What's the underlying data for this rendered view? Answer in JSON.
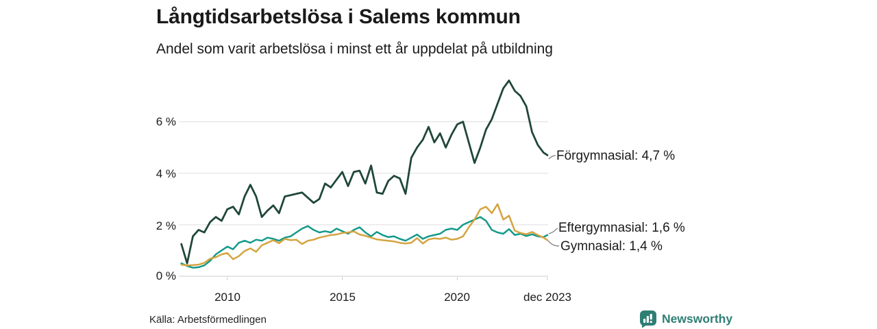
{
  "header": {
    "title": "Långtidsarbetslösa i Salems kommun",
    "subtitle": "Andel som varit arbetslösa i minst ett år uppdelat på utbildning"
  },
  "chart_data": {
    "type": "line",
    "title": "Långtidsarbetslösa i Salems kommun",
    "subtitle": "Andel som varit arbetslösa i minst ett år uppdelat på utbildning",
    "unit": "%",
    "grid": true,
    "legend_position": "end-of-line-annotations",
    "xlim": [
      2007.95,
      2023.95
    ],
    "ylim": [
      0,
      7.8
    ],
    "y_ticks": [
      {
        "value": 6,
        "label": "6 %"
      },
      {
        "value": 4,
        "label": "4 %"
      },
      {
        "value": 2,
        "label": "2 %"
      },
      {
        "value": 0,
        "label": "0 %"
      }
    ],
    "x_ticks": [
      {
        "x": 2010,
        "label": "2010"
      },
      {
        "x": 2015,
        "label": "2015"
      },
      {
        "x": 2020,
        "label": "2020"
      },
      {
        "x": 2023.92,
        "label": "dec 2023"
      }
    ],
    "x": [
      2008.0,
      2008.25,
      2008.5,
      2008.75,
      2009.0,
      2009.25,
      2009.5,
      2009.75,
      2010.0,
      2010.25,
      2010.5,
      2010.75,
      2011.0,
      2011.25,
      2011.5,
      2011.75,
      2012.0,
      2012.25,
      2012.5,
      2012.75,
      2013.0,
      2013.25,
      2013.5,
      2013.75,
      2014.0,
      2014.25,
      2014.5,
      2014.75,
      2015.0,
      2015.25,
      2015.5,
      2015.75,
      2016.0,
      2016.25,
      2016.5,
      2016.75,
      2017.0,
      2017.25,
      2017.5,
      2017.75,
      2018.0,
      2018.25,
      2018.5,
      2018.75,
      2019.0,
      2019.25,
      2019.5,
      2019.75,
      2020.0,
      2020.25,
      2020.5,
      2020.75,
      2021.0,
      2021.25,
      2021.5,
      2021.75,
      2022.0,
      2022.25,
      2022.5,
      2022.75,
      2023.0,
      2023.25,
      2023.5,
      2023.75,
      2023.92
    ],
    "series": [
      {
        "name": "Eftergymnasial",
        "annotation": "Eftergymnasial: 1,6 %",
        "last_value": "1,6 %",
        "color": "#14998a",
        "values": [
          0.5,
          0.4,
          0.33,
          0.35,
          0.42,
          0.6,
          0.85,
          1.0,
          1.15,
          1.05,
          1.3,
          1.38,
          1.3,
          1.42,
          1.38,
          1.5,
          1.45,
          1.38,
          1.5,
          1.55,
          1.7,
          1.85,
          1.95,
          1.8,
          1.7,
          1.75,
          1.7,
          1.85,
          1.75,
          1.65,
          1.8,
          1.9,
          1.7,
          1.55,
          1.72,
          1.6,
          1.52,
          1.55,
          1.45,
          1.38,
          1.5,
          1.62,
          1.45,
          1.55,
          1.6,
          1.65,
          1.8,
          1.85,
          1.8,
          2.0,
          2.1,
          2.2,
          2.3,
          2.15,
          1.8,
          1.7,
          1.65,
          1.83,
          1.6,
          1.65,
          1.56,
          1.63,
          1.55,
          1.52,
          1.6
        ]
      },
      {
        "name": "Gymnasial",
        "annotation": "Gymnasial: 1,4 %",
        "last_value": "1,4 %",
        "color": "#d4a43f",
        "values": [
          0.45,
          0.42,
          0.43,
          0.45,
          0.52,
          0.68,
          0.74,
          0.85,
          0.9,
          0.66,
          0.78,
          0.98,
          1.08,
          0.95,
          1.2,
          1.3,
          1.4,
          1.28,
          1.45,
          1.4,
          1.42,
          1.25,
          1.38,
          1.42,
          1.5,
          1.55,
          1.6,
          1.62,
          1.68,
          1.7,
          1.74,
          1.62,
          1.57,
          1.5,
          1.43,
          1.4,
          1.38,
          1.35,
          1.3,
          1.27,
          1.3,
          1.48,
          1.27,
          1.43,
          1.47,
          1.45,
          1.5,
          1.42,
          1.45,
          1.55,
          1.9,
          2.2,
          2.6,
          2.7,
          2.45,
          2.8,
          2.2,
          2.35,
          1.77,
          1.68,
          1.63,
          1.72,
          1.6,
          1.5,
          1.4
        ]
      },
      {
        "name": "Förgymnasial",
        "annotation": "Förgymnasial: 4,7 %",
        "last_value": "4,7 %",
        "color": "#1f4738",
        "values": [
          1.25,
          0.5,
          1.55,
          1.8,
          1.7,
          2.1,
          2.3,
          2.15,
          2.6,
          2.7,
          2.4,
          3.1,
          3.55,
          3.1,
          2.3,
          2.55,
          2.75,
          2.45,
          3.1,
          3.15,
          3.2,
          3.25,
          3.05,
          2.85,
          3.0,
          3.6,
          3.45,
          3.75,
          4.05,
          3.5,
          4.05,
          4.1,
          3.6,
          4.3,
          3.25,
          3.2,
          3.7,
          3.9,
          3.8,
          3.2,
          4.6,
          5.0,
          5.3,
          5.8,
          5.2,
          5.55,
          5.0,
          5.5,
          5.9,
          6.0,
          5.2,
          4.4,
          5.0,
          5.7,
          6.1,
          6.7,
          7.3,
          7.6,
          7.2,
          7.0,
          6.6,
          5.6,
          5.1,
          4.8,
          4.7
        ]
      }
    ]
  },
  "footer": {
    "source": "Källa: Arbetsförmedlingen",
    "brand": "Newsworthy"
  },
  "colors": {
    "forgymnasial_line": "#1f4738",
    "eftergymnasial_line": "#14998a",
    "gymnasial_line": "#d4a43f",
    "gridline": "#e4e4e4",
    "baseline": "#d6d6d6",
    "text": "#1a1a1a",
    "brand_teal": "#2e7e74"
  }
}
